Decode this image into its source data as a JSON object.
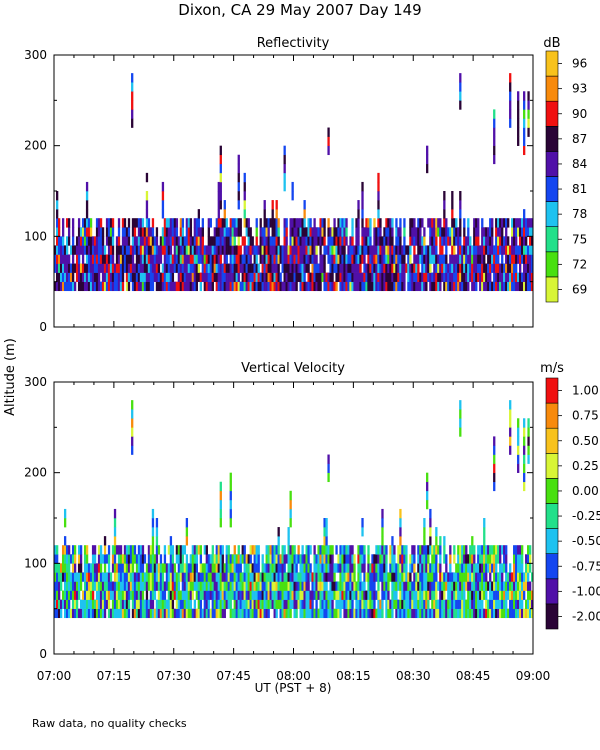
{
  "figure_title": "Dixon, CA 29 May 2007  Day 149",
  "y_axis_label": "Altitude (m)",
  "x_axis_label": "UT  (PST + 8)",
  "footnote": "Raw data, no quality checks",
  "chart_data": [
    {
      "type": "heatmap",
      "title": "Reflectivity",
      "units": "dB",
      "xlabel": "UT  (PST + 8)",
      "ylabel": "Altitude (m)",
      "xlim_minutes": [
        0,
        120
      ],
      "ylim": [
        0,
        300
      ],
      "x_ticks": [
        "07:00",
        "07:15",
        "07:30",
        "07:45",
        "08:00",
        "08:15",
        "08:30",
        "08:45",
        "09:00"
      ],
      "y_ticks": [
        0,
        100,
        200,
        300
      ],
      "colorbar": {
        "levels": [
          "69",
          "72",
          "75",
          "78",
          "81",
          "84",
          "87",
          "90",
          "93",
          "96"
        ],
        "colors": [
          "#d8f536",
          "#48e010",
          "#22e08a",
          "#1ec2f0",
          "#1446f0",
          "#5010a8",
          "#2a0436",
          "#f01010",
          "#f88a0c",
          "#f8c21c"
        ]
      },
      "data_extent": {
        "altitude_min_m": 40,
        "bulk_top_m": 120,
        "max_echo_m": 280
      },
      "palette_weights": [
        0.02,
        0.01,
        0.01,
        0.08,
        0.2,
        0.3,
        0.23,
        0.12,
        0.02,
        0.01
      ],
      "columns": [
        {
          "t": 19.3,
          "bottom": 220,
          "top": 280
        },
        {
          "t": 41.5,
          "bottom": 130,
          "top": 200
        },
        {
          "t": 46,
          "bottom": 130,
          "top": 190
        },
        {
          "t": 57.5,
          "bottom": 150,
          "top": 200
        },
        {
          "t": 68.5,
          "bottom": 190,
          "top": 220
        },
        {
          "t": 93.2,
          "bottom": 170,
          "top": 200
        },
        {
          "t": 101.5,
          "bottom": 240,
          "top": 280
        },
        {
          "t": 110,
          "bottom": 180,
          "top": 240
        },
        {
          "t": 114,
          "bottom": 220,
          "top": 280
        },
        {
          "t": 116,
          "bottom": 200,
          "top": 260
        },
        {
          "t": 117.5,
          "bottom": 190,
          "top": 260
        },
        {
          "t": 118.6,
          "bottom": 210,
          "top": 260
        }
      ]
    },
    {
      "type": "heatmap",
      "title": "Vertical Velocity",
      "units": "m/s",
      "xlabel": "UT  (PST + 8)",
      "ylabel": "Altitude (m)",
      "xlim_minutes": [
        0,
        120
      ],
      "ylim": [
        0,
        300
      ],
      "x_ticks": [
        "07:00",
        "07:15",
        "07:30",
        "07:45",
        "08:00",
        "08:15",
        "08:30",
        "08:45",
        "09:00"
      ],
      "y_ticks": [
        0,
        100,
        200,
        300
      ],
      "colorbar": {
        "levels": [
          "-2.00",
          "-1.00",
          "-0.75",
          "-0.50",
          "-0.25",
          "0.00",
          "0.25",
          "0.50",
          "0.75",
          "1.00"
        ],
        "colors": [
          "#2a0436",
          "#5010a8",
          "#1446f0",
          "#1ec2f0",
          "#22e08a",
          "#48e010",
          "#d8f536",
          "#f8c21c",
          "#f88a0c",
          "#f01010"
        ]
      },
      "data_extent": {
        "altitude_min_m": 40,
        "bulk_top_m": 120,
        "max_echo_m": 280
      },
      "palette_weights": [
        0.04,
        0.12,
        0.2,
        0.22,
        0.14,
        0.14,
        0.08,
        0.03,
        0.02,
        0.01
      ],
      "columns": [
        {
          "t": 19.3,
          "bottom": 220,
          "top": 280
        },
        {
          "t": 41.5,
          "bottom": 140,
          "top": 190
        },
        {
          "t": 44,
          "bottom": 140,
          "top": 200
        },
        {
          "t": 59,
          "bottom": 140,
          "top": 180
        },
        {
          "t": 68.5,
          "bottom": 190,
          "top": 220
        },
        {
          "t": 93.2,
          "bottom": 160,
          "top": 200
        },
        {
          "t": 101.5,
          "bottom": 240,
          "top": 280
        },
        {
          "t": 110,
          "bottom": 180,
          "top": 240
        },
        {
          "t": 114,
          "bottom": 220,
          "top": 280
        },
        {
          "t": 116,
          "bottom": 200,
          "top": 260
        },
        {
          "t": 117.5,
          "bottom": 180,
          "top": 260
        },
        {
          "t": 118.6,
          "bottom": 210,
          "top": 260
        }
      ]
    }
  ]
}
